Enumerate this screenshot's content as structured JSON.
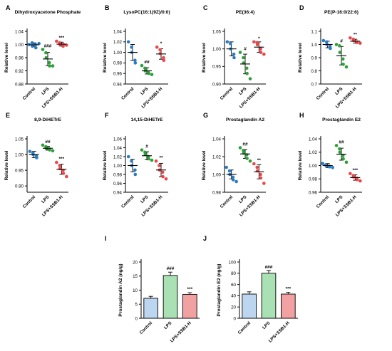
{
  "colors": {
    "control": "#2b7bbf",
    "lps": "#2e9e3a",
    "lps_ssb1h": "#e8474a",
    "bar_control": "#bcd6ef",
    "bar_lps": "#a9e0b4",
    "bar_lps_ssb1h": "#f2a1a3",
    "axis": "#000000"
  },
  "groups": [
    "Control",
    "LPS",
    "LPS+SSB1-H"
  ],
  "chart_data": [
    {
      "letter": "A",
      "type": "scatter",
      "title": "Dihydroxyacetone Phosphate",
      "ylabel": "Relative level",
      "ylim": [
        0.88,
        1.04
      ],
      "yticks": [
        "0.88",
        "0.92",
        "0.96",
        "1.00",
        "1.04"
      ],
      "groups": [
        "Control",
        "LPS",
        "LPS+SSB1-H"
      ],
      "series": [
        {
          "points": [
            1.0,
            1.005,
            0.995,
            1.0,
            0.99,
            1.003
          ],
          "mean": 0.999,
          "sd": 0.006,
          "sig": ""
        },
        {
          "points": [
            0.985,
            0.975,
            0.96,
            0.945,
            0.935,
            0.935
          ],
          "mean": 0.956,
          "sd": 0.02,
          "sig": "###"
        },
        {
          "points": [
            1.01,
            1.005,
            1.0,
            0.995,
            1.0,
            0.998
          ],
          "mean": 1.001,
          "sd": 0.006,
          "sig": "***"
        }
      ]
    },
    {
      "letter": "B",
      "type": "scatter",
      "title": "LysoPC(16:1(9Z)/0:0)",
      "ylabel": "Relative level",
      "ylim": [
        0.94,
        1.04
      ],
      "yticks": [
        "0.94",
        "0.96",
        "0.98",
        "1.00",
        "1.02",
        "1.04"
      ],
      "groups": [
        "Control",
        "LPS",
        "LPS+SSB1-H"
      ],
      "series": [
        {
          "points": [
            1.02,
            1.01,
            1.0,
            0.985,
            0.98
          ],
          "mean": 1.0,
          "sd": 0.015,
          "sig": ""
        },
        {
          "points": [
            0.975,
            0.97,
            0.965,
            0.962,
            0.96,
            0.958
          ],
          "mean": 0.965,
          "sd": 0.006,
          "sig": "##"
        },
        {
          "points": [
            1.01,
            1.005,
            0.998,
            0.99,
            0.985
          ],
          "mean": 0.997,
          "sd": 0.01,
          "sig": "*"
        }
      ]
    },
    {
      "letter": "C",
      "type": "scatter",
      "title": "PE(36:4)",
      "ylabel": "Relative level",
      "ylim": [
        0.9,
        1.05
      ],
      "yticks": [
        "0.90",
        "0.95",
        "1.00",
        "1.05"
      ],
      "groups": [
        "Control",
        "LPS",
        "LPS+SSB1-H"
      ],
      "series": [
        {
          "points": [
            1.02,
            1.015,
            1.0,
            0.985,
            0.975
          ],
          "mean": 1.0,
          "sd": 0.02,
          "sig": ""
        },
        {
          "points": [
            0.99,
            0.975,
            0.96,
            0.945,
            0.93,
            0.915
          ],
          "mean": 0.957,
          "sd": 0.028,
          "sig": "#"
        },
        {
          "points": [
            1.02,
            1.018,
            1.012,
            1.0,
            0.99,
            0.985
          ],
          "mean": 1.005,
          "sd": 0.015,
          "sig": "*"
        }
      ]
    },
    {
      "letter": "D",
      "type": "scatter",
      "title": "PE(P-16:0/22:6)",
      "ylabel": "Relative level",
      "ylim": [
        0.7,
        1.1
      ],
      "yticks": [
        "0.7",
        "0.8",
        "0.9",
        "1.0",
        "1.1"
      ],
      "groups": [
        "Control",
        "LPS",
        "LPS+SSB1-H"
      ],
      "series": [
        {
          "points": [
            1.03,
            1.02,
            1.0,
            0.985,
            0.97
          ],
          "mean": 1.0,
          "sd": 0.025,
          "sig": ""
        },
        {
          "points": [
            1.0,
            0.99,
            0.94,
            0.89,
            0.85,
            0.83
          ],
          "mean": 0.915,
          "sd": 0.07,
          "sig": "#"
        },
        {
          "points": [
            1.05,
            1.04,
            1.03,
            1.02,
            1.015,
            1.01
          ],
          "mean": 1.025,
          "sd": 0.015,
          "sig": "**"
        }
      ]
    },
    {
      "letter": "E",
      "type": "scatter",
      "title": "8,9-DiHETrE",
      "ylabel": "Relative level",
      "ylim": [
        0.88,
        1.05
      ],
      "yticks": [
        "0.90",
        "0.95",
        "1.00",
        "1.05"
      ],
      "groups": [
        "Control",
        "LPS",
        "LPS+SSB1-H"
      ],
      "series": [
        {
          "points": [
            1.01,
            1.005,
            1.0,
            0.995,
            0.99
          ],
          "mean": 1.0,
          "sd": 0.01,
          "sig": ""
        },
        {
          "points": [
            1.03,
            1.025,
            1.02,
            1.018,
            1.015,
            1.012
          ],
          "mean": 1.02,
          "sd": 0.006,
          "sig": "##"
        },
        {
          "points": [
            0.975,
            0.965,
            0.955,
            0.95,
            0.94,
            0.93
          ],
          "mean": 0.953,
          "sd": 0.016,
          "sig": "***"
        }
      ]
    },
    {
      "letter": "F",
      "type": "scatter",
      "title": "14,15-DiHETrE",
      "ylabel": "Relative level",
      "ylim": [
        0.94,
        1.06
      ],
      "yticks": [
        "0.94",
        "0.96",
        "0.98",
        "1.00",
        "1.02",
        "1.04",
        "1.06"
      ],
      "groups": [
        "Control",
        "LPS",
        "LPS+SSB1-H"
      ],
      "series": [
        {
          "points": [
            1.02,
            1.01,
            1.0,
            0.99,
            0.98
          ],
          "mean": 1.0,
          "sd": 0.014,
          "sig": ""
        },
        {
          "points": [
            1.035,
            1.03,
            1.025,
            1.02,
            1.015,
            1.012
          ],
          "mean": 1.022,
          "sd": 0.009,
          "sig": "#"
        },
        {
          "points": [
            1.01,
            1.0,
            0.99,
            0.985,
            0.975,
            0.97
          ],
          "mean": 0.99,
          "sd": 0.015,
          "sig": "**"
        }
      ]
    },
    {
      "letter": "G",
      "type": "scatter",
      "title": "Prostaglandin A2",
      "ylabel": "Relative level",
      "ylim": [
        0.98,
        1.04
      ],
      "yticks": [
        "0.98",
        "1.00",
        "1.02",
        "1.04"
      ],
      "groups": [
        "Control",
        "LPS",
        "LPS+SSB1-H"
      ],
      "series": [
        {
          "points": [
            1.008,
            1.004,
            1.0,
            0.997,
            0.994,
            0.992
          ],
          "mean": 1.0,
          "sd": 0.005,
          "sig": ""
        },
        {
          "points": [
            1.03,
            1.027,
            1.024,
            1.022,
            1.018,
            1.015
          ],
          "mean": 1.023,
          "sd": 0.005,
          "sig": "##"
        },
        {
          "points": [
            1.012,
            1.008,
            1.004,
            1.0,
            0.996,
            0.99
          ],
          "mean": 1.003,
          "sd": 0.008,
          "sig": "**"
        }
      ]
    },
    {
      "letter": "H",
      "type": "scatter",
      "title": "Prostaglandin E2",
      "ylabel": "Relative level",
      "ylim": [
        0.96,
        1.04
      ],
      "yticks": [
        "0.96",
        "0.98",
        "1.00",
        "1.02",
        "1.04"
      ],
      "groups": [
        "Control",
        "LPS",
        "LPS+SSB1-H"
      ],
      "series": [
        {
          "points": [
            1.003,
            1.001,
            1.0,
            0.999,
            0.998,
            0.997
          ],
          "mean": 1.0,
          "sd": 0.003,
          "sig": ""
        },
        {
          "points": [
            1.03,
            1.025,
            1.02,
            1.015,
            1.01,
            1.005
          ],
          "mean": 1.017,
          "sd": 0.009,
          "sig": "##"
        },
        {
          "points": [
            0.988,
            0.985,
            0.983,
            0.981,
            0.979,
            0.977
          ],
          "mean": 0.982,
          "sd": 0.004,
          "sig": "***"
        }
      ]
    },
    {
      "letter": "I",
      "type": "bar",
      "title": "",
      "ylabel": "Prostaglandin A2 (ng/g)",
      "ylim": [
        0,
        20
      ],
      "yticks": [
        "0",
        "5",
        "10",
        "15",
        "20"
      ],
      "categories": [
        "Control",
        "LPS",
        "LPS+SSB1-H"
      ],
      "values": [
        7.1,
        15.2,
        8.5
      ],
      "errors": [
        0.7,
        1.2,
        0.6
      ],
      "sig": [
        "",
        "###",
        "***"
      ]
    },
    {
      "letter": "J",
      "type": "bar",
      "title": "",
      "ylabel": "Prostaglandin E2 (ng/g)",
      "ylim": [
        0,
        100
      ],
      "yticks": [
        "0",
        "20",
        "40",
        "60",
        "80",
        "100"
      ],
      "categories": [
        "Control",
        "LPS",
        "LPS+SSB1-H"
      ],
      "values": [
        43,
        80,
        43
      ],
      "errors": [
        4,
        5,
        3
      ],
      "sig": [
        "",
        "###",
        "***"
      ]
    }
  ]
}
